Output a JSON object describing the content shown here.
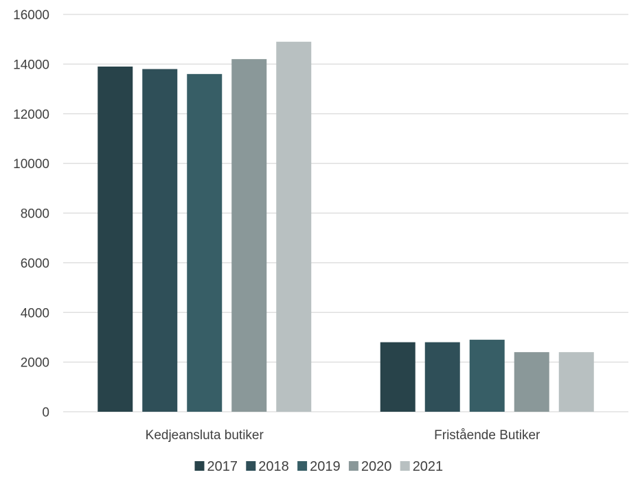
{
  "chart_data": {
    "type": "bar",
    "title": "",
    "xlabel": "",
    "ylabel": "",
    "categories": [
      "Kedjeansluta butiker",
      "Fristående Butiker"
    ],
    "series": [
      {
        "name": "2017",
        "values": [
          13900,
          2800
        ],
        "color": "#28434a"
      },
      {
        "name": "2018",
        "values": [
          13800,
          2800
        ],
        "color": "#2f4f58"
      },
      {
        "name": "2019",
        "values": [
          13600,
          2900
        ],
        "color": "#375e66"
      },
      {
        "name": "2020",
        "values": [
          14200,
          2400
        ],
        "color": "#8a9899"
      },
      {
        "name": "2021",
        "values": [
          14900,
          2400
        ],
        "color": "#b8c0c1"
      }
    ],
    "ylim": [
      0,
      16000
    ],
    "yticks": [
      0,
      2000,
      4000,
      6000,
      8000,
      10000,
      12000,
      14000,
      16000
    ],
    "grid": true,
    "gridColor": "#d9d9d9",
    "legend": "bottom"
  }
}
